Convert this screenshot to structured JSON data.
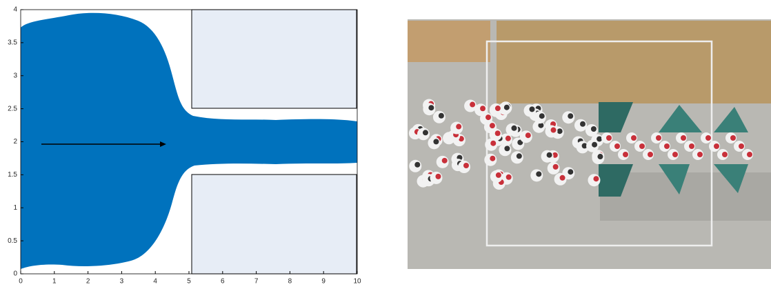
{
  "chart_data": {
    "type": "trajectory",
    "xlim": [
      0,
      10
    ],
    "ylim": [
      0,
      4
    ],
    "xticks": [
      0,
      1,
      2,
      3,
      4,
      5,
      6,
      7,
      8,
      9,
      10
    ],
    "yticks": [
      0,
      0.5,
      1,
      1.5,
      2,
      2.5,
      3,
      3.5,
      4
    ],
    "color": "#0072bd"
  }
}
